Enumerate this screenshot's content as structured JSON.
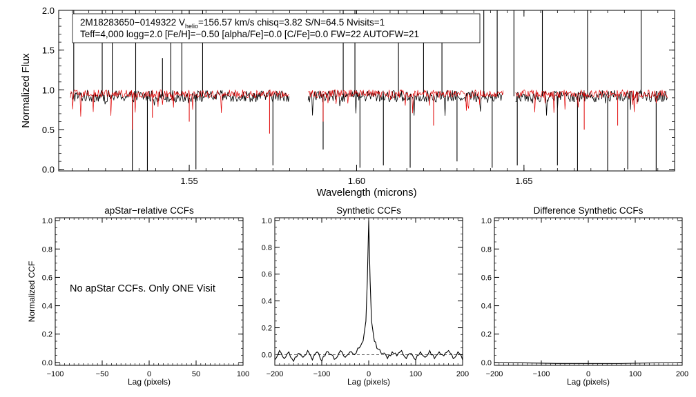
{
  "colors": {
    "observed": "#000000",
    "model": "#e00000",
    "axis": "#000000",
    "background": "#ffffff"
  },
  "header": {
    "line1_prefix": "2M18283650−0149322  V",
    "line1_sub": "helio",
    "line1_suffix": "=156.57 km/s  chisq=3.82  S/N=64.5  Nvisits=1",
    "line2": "Teff=4,000 logg=2.0 [Fe/H]=−0.50 [alpha/Fe]=0.0 [C/Fe]=0.0 FW=22 AUTOFW=21"
  },
  "panels": {
    "ccf1": {
      "title": "apStar−relative CCFs",
      "note": "No apStar CCFs.  Only ONE Visit"
    },
    "ccf2": {
      "title": "Synthetic CCFs"
    },
    "ccf3": {
      "title": "Difference Synthetic CCFs"
    }
  },
  "chart_data": [
    {
      "id": "spectrum",
      "type": "line",
      "title": "",
      "xlabel": "Wavelength (microns)",
      "ylabel": "Normalized Flux",
      "xlim": [
        1.511,
        1.695
      ],
      "ylim": [
        -0.02,
        2.0
      ],
      "xticks": [
        1.55,
        1.6,
        1.65
      ],
      "xtick_labels": [
        "1.55",
        "1.60",
        "1.65"
      ],
      "yticks": [
        0.0,
        0.5,
        1.0,
        1.5,
        2.0
      ],
      "ytick_labels": [
        "0.0",
        "0.5",
        "1.0",
        "1.5",
        "2.0"
      ],
      "detectors": [
        [
          1.5145,
          1.58
        ],
        [
          1.5855,
          1.644
        ],
        [
          1.6475,
          1.693
        ]
      ],
      "series": [
        {
          "name": "observed",
          "color": "#000000",
          "continuum": 0.92,
          "features": [
            {
              "x": 1.5155,
              "y": 2.0
            },
            {
              "x": 1.524,
              "y": 2.0
            },
            {
              "x": 1.527,
              "y": 2.0
            },
            {
              "x": 1.533,
              "y": -0.02
            },
            {
              "x": 1.534,
              "y": 2.0
            },
            {
              "x": 1.5375,
              "y": -0.02
            },
            {
              "x": 1.542,
              "y": 1.4
            },
            {
              "x": 1.5445,
              "y": 1.8
            },
            {
              "x": 1.5478,
              "y": 2.0
            },
            {
              "x": 1.552,
              "y": 0.0
            },
            {
              "x": 1.554,
              "y": 2.0
            },
            {
              "x": 1.575,
              "y": 0.05
            },
            {
              "x": 1.59,
              "y": 0.25
            },
            {
              "x": 1.596,
              "y": 2.0
            },
            {
              "x": 1.5995,
              "y": 2.0
            },
            {
              "x": 1.601,
              "y": 0.02
            },
            {
              "x": 1.608,
              "y": 0.05
            },
            {
              "x": 1.6125,
              "y": 2.0
            },
            {
              "x": 1.616,
              "y": 0.02
            },
            {
              "x": 1.62,
              "y": 2.0
            },
            {
              "x": 1.6255,
              "y": 2.0
            },
            {
              "x": 1.63,
              "y": 0.1
            },
            {
              "x": 1.638,
              "y": 2.0
            },
            {
              "x": 1.6405,
              "y": 0.02
            },
            {
              "x": 1.642,
              "y": 2.0
            },
            {
              "x": 1.647,
              "y": 2.0
            },
            {
              "x": 1.648,
              "y": 0.05
            },
            {
              "x": 1.6555,
              "y": 2.0
            },
            {
              "x": 1.66,
              "y": 0.05
            },
            {
              "x": 1.666,
              "y": -0.02
            },
            {
              "x": 1.669,
              "y": 2.0
            },
            {
              "x": 1.675,
              "y": -0.02
            },
            {
              "x": 1.681,
              "y": 0.0
            },
            {
              "x": 1.685,
              "y": 2.0
            },
            {
              "x": 1.6895,
              "y": -0.02
            }
          ]
        },
        {
          "name": "model",
          "color": "#e00000",
          "continuum": 0.95,
          "features": [
            {
              "x": 1.533,
              "y": 0.5
            },
            {
              "x": 1.539,
              "y": 0.65
            },
            {
              "x": 1.55,
              "y": 0.6
            },
            {
              "x": 1.574,
              "y": 0.45
            },
            {
              "x": 1.59,
              "y": 0.6
            },
            {
              "x": 1.623,
              "y": 0.55
            },
            {
              "x": 1.668,
              "y": 0.5
            },
            {
              "x": 1.678,
              "y": 0.55
            }
          ]
        }
      ]
    },
    {
      "id": "apstar-ccf",
      "type": "line",
      "title": "apStar−relative CCFs",
      "xlabel": "Lag (pixels)",
      "ylabel": "Normalized CCF",
      "xlim": [
        -100,
        100
      ],
      "ylim": [
        -0.02,
        1.02
      ],
      "xticks": [
        -100,
        -50,
        0,
        50,
        100
      ],
      "xtick_labels": [
        "−100",
        "−50",
        "0",
        "50",
        "100"
      ],
      "yticks": [
        0.0,
        0.2,
        0.4,
        0.6,
        0.8,
        1.0
      ],
      "ytick_labels": [
        "0.0",
        "0.2",
        "0.4",
        "0.6",
        "0.8",
        "1.0"
      ],
      "series": []
    },
    {
      "id": "synthetic-ccf",
      "type": "line",
      "title": "Synthetic CCFs",
      "xlabel": "Lag (pixels)",
      "ylabel": "",
      "xlim": [
        -200,
        200
      ],
      "ylim": [
        -0.08,
        1.02
      ],
      "xticks": [
        -200,
        -100,
        0,
        100,
        200
      ],
      "xtick_labels": [
        "−200",
        "−100",
        "0",
        "100",
        "200"
      ],
      "yticks": [
        0.0,
        0.2,
        0.4,
        0.6,
        0.8,
        1.0
      ],
      "ytick_labels": [
        "0.0",
        "0.2",
        "0.4",
        "0.6",
        "0.8",
        "1.0"
      ],
      "zero_line": 0.0,
      "series": [
        {
          "name": "ccf",
          "color": "#000000",
          "peak_x": 0,
          "peak_y": 1.0,
          "points": [
            [
              -200,
              -0.04
            ],
            [
              -190,
              0.03
            ],
            [
              -180,
              -0.03
            ],
            [
              -170,
              0.02
            ],
            [
              -160,
              -0.05
            ],
            [
              -150,
              0.01
            ],
            [
              -140,
              -0.02
            ],
            [
              -130,
              0.03
            ],
            [
              -120,
              -0.04
            ],
            [
              -110,
              0.02
            ],
            [
              -100,
              -0.05
            ],
            [
              -90,
              0.02
            ],
            [
              -80,
              0.0
            ],
            [
              -70,
              -0.03
            ],
            [
              -60,
              0.03
            ],
            [
              -50,
              -0.02
            ],
            [
              -40,
              0.02
            ],
            [
              -30,
              0.0
            ],
            [
              -20,
              0.05
            ],
            [
              -12,
              0.1
            ],
            [
              -6,
              0.25
            ],
            [
              -3,
              0.55
            ],
            [
              0,
              1.0
            ],
            [
              3,
              0.55
            ],
            [
              6,
              0.25
            ],
            [
              12,
              0.1
            ],
            [
              20,
              0.04
            ],
            [
              30,
              0.01
            ],
            [
              40,
              -0.03
            ],
            [
              50,
              0.02
            ],
            [
              60,
              -0.01
            ],
            [
              70,
              0.03
            ],
            [
              80,
              -0.03
            ],
            [
              90,
              0.01
            ],
            [
              100,
              -0.04
            ],
            [
              110,
              0.02
            ],
            [
              120,
              -0.02
            ],
            [
              130,
              0.03
            ],
            [
              140,
              -0.03
            ],
            [
              150,
              0.02
            ],
            [
              160,
              -0.01
            ],
            [
              170,
              0.03
            ],
            [
              180,
              -0.03
            ],
            [
              190,
              0.02
            ],
            [
              200,
              -0.04
            ]
          ]
        }
      ]
    },
    {
      "id": "difference-ccf",
      "type": "line",
      "title": "Difference Synthetic CCFs",
      "xlabel": "Lag (pixels)",
      "ylabel": "",
      "xlim": [
        -200,
        200
      ],
      "ylim": [
        -0.02,
        1.02
      ],
      "xticks": [
        -200,
        -100,
        0,
        100,
        200
      ],
      "xtick_labels": [
        "−200",
        "−100",
        "0",
        "100",
        "200"
      ],
      "yticks": [
        0.0,
        0.2,
        0.4,
        0.6,
        0.8,
        1.0
      ],
      "ytick_labels": [
        "0.0",
        "0.2",
        "0.4",
        "0.6",
        "0.8",
        "1.0"
      ],
      "series": [
        {
          "name": "difference",
          "color": "#000000",
          "points": [
            [
              -200,
              0.0
            ],
            [
              200,
              0.0
            ]
          ]
        }
      ]
    }
  ]
}
